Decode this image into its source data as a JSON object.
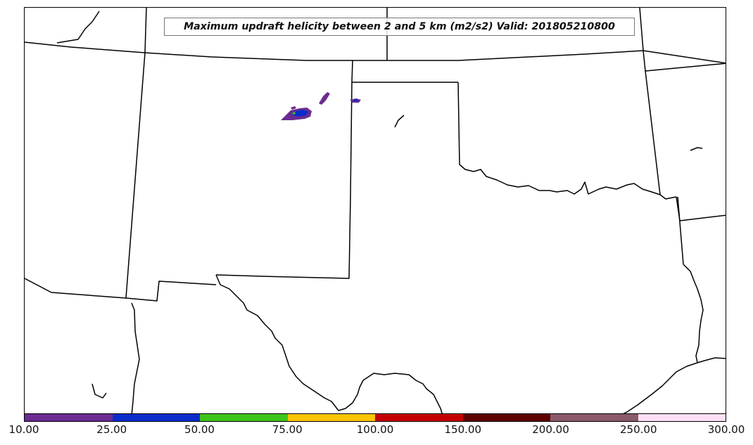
{
  "title": "Maximum updraft helicity between 2 and 5 km (m2/s2) Valid: 201805210800",
  "colorbar": {
    "ticks": [
      "10.00",
      "25.00",
      "50.00",
      "75.00",
      "100.00",
      "150.00",
      "200.00",
      "250.00",
      "300.00"
    ],
    "colors": [
      "#6a2c91",
      "#0a2ccc",
      "#3fc41a",
      "#ffc400",
      "#c40000",
      "#5c0000",
      "#8a5a6a",
      "#fbe0f5"
    ]
  },
  "map": {
    "line_color": "#000000",
    "cell_colors": {
      "outer": "#6a2c91",
      "core": "#0a2ccc",
      "center": "#3fc41a"
    }
  }
}
